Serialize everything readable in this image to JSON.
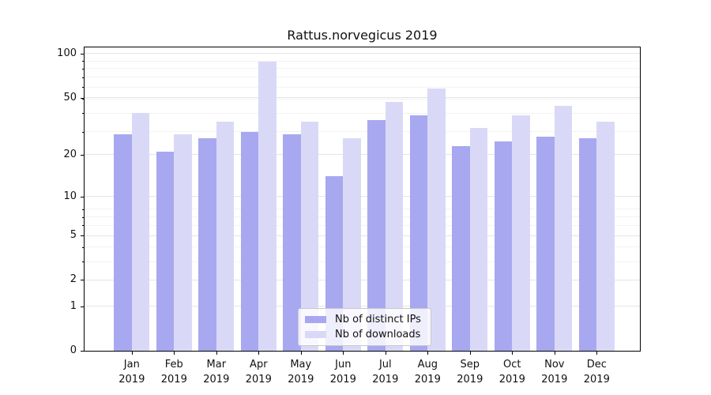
{
  "title": "Rattus.norvegicus 2019",
  "chart_data": {
    "type": "bar",
    "title": "Rattus.norvegicus 2019",
    "categories": [
      "Jan 2019",
      "Feb 2019",
      "Mar 2019",
      "Apr 2019",
      "May 2019",
      "Jun 2019",
      "Jul 2019",
      "Aug 2019",
      "Sep 2019",
      "Oct 2019",
      "Nov 2019",
      "Dec 2019"
    ],
    "series": [
      {
        "name": "Nb of distinct IPs",
        "color": "#a8a8f0",
        "values": [
          28,
          21,
          26,
          29,
          28,
          14,
          35,
          38,
          23,
          25,
          27,
          26
        ]
      },
      {
        "name": "Nb of downloads",
        "color": "#d9d9f7",
        "values": [
          39,
          28,
          34,
          88,
          34,
          26,
          47,
          58,
          31,
          38,
          44,
          34
        ]
      }
    ],
    "xlabel": "",
    "ylabel": "",
    "yscale": "log1p",
    "yticks": [
      0,
      1,
      2,
      5,
      10,
      20,
      50,
      100
    ],
    "ylim": [
      0,
      110
    ],
    "grid": "both",
    "legend_position": "lower center"
  }
}
